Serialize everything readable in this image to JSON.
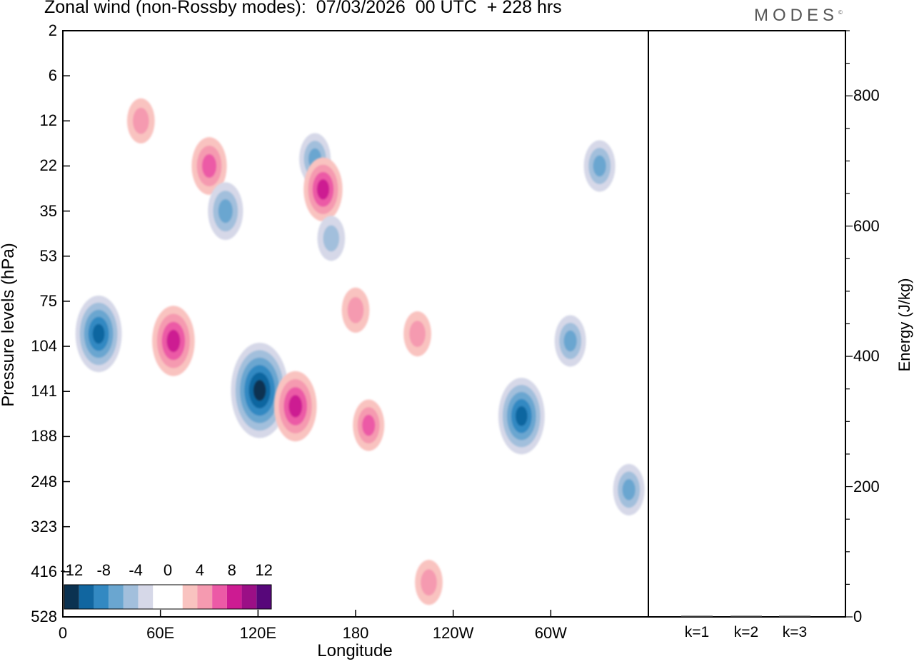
{
  "header": {
    "title": "Zonal wind (non-Rossby modes):  07/03/2026  00 UTC  + 228 hrs",
    "brand": "MODES",
    "brand_mark": "©"
  },
  "chart_data": [
    {
      "type": "heatmap",
      "title": "Zonal wind (non-Rossby modes):  07/03/2026  00 UTC  + 228 hrs",
      "xlabel": "Longitude",
      "ylabel": "Pressure levels (hPa)",
      "xticks": [
        "0",
        "60E",
        "120E",
        "180",
        "120W",
        "60W"
      ],
      "xtick_values": [
        0,
        60,
        120,
        180,
        240,
        300
      ],
      "xlim": [
        0,
        360
      ],
      "yticks": [
        "2",
        "6",
        "12",
        "22",
        "35",
        "53",
        "75",
        "104",
        "141",
        "188",
        "248",
        "323",
        "416",
        "528"
      ],
      "colorbar": {
        "labels": [
          "-12",
          "-8",
          "-4",
          "0",
          "4",
          "8",
          "12"
        ],
        "label_values": [
          -12,
          -8,
          -4,
          0,
          4,
          8,
          12
        ],
        "colors": [
          "#0b3251",
          "#1166a0",
          "#3389c2",
          "#6aa6d0",
          "#a2bfdc",
          "#d6d8e8",
          "#ffffff",
          "#ffffff",
          "#f9c3c0",
          "#f59ab0",
          "#ec5aa6",
          "#cd1b92",
          "#9b0f86",
          "#57077a"
        ]
      },
      "features": [
        {
          "sign": "positive",
          "lon": 48,
          "level": 12,
          "magnitude": 4
        },
        {
          "sign": "positive",
          "lon": 90,
          "level": 22,
          "magnitude": 6
        },
        {
          "sign": "negative",
          "lon": 100,
          "level": 35,
          "magnitude": 6
        },
        {
          "sign": "negative",
          "lon": 155,
          "level": 20,
          "magnitude": 5
        },
        {
          "sign": "positive",
          "lon": 160,
          "level": 28,
          "magnitude": 7
        },
        {
          "sign": "negative",
          "lon": 165,
          "level": 45,
          "magnitude": 4
        },
        {
          "sign": "positive",
          "lon": 180,
          "level": 80,
          "magnitude": 4
        },
        {
          "sign": "negative",
          "lon": 22,
          "level": 95,
          "magnitude": 9
        },
        {
          "sign": "positive",
          "lon": 68,
          "level": 100,
          "magnitude": 8
        },
        {
          "sign": "negative",
          "lon": 121,
          "level": 140,
          "magnitude": 12
        },
        {
          "sign": "positive",
          "lon": 143,
          "level": 155,
          "magnitude": 8
        },
        {
          "sign": "positive",
          "lon": 188,
          "level": 175,
          "magnitude": 5
        },
        {
          "sign": "positive",
          "lon": 218,
          "level": 95,
          "magnitude": 4
        },
        {
          "sign": "negative",
          "lon": 282,
          "level": 165,
          "magnitude": 9
        },
        {
          "sign": "negative",
          "lon": 312,
          "level": 100,
          "magnitude": 5
        },
        {
          "sign": "negative",
          "lon": 348,
          "level": 260,
          "magnitude": 5
        },
        {
          "sign": "positive",
          "lon": 225,
          "level": 440,
          "magnitude": 4
        },
        {
          "sign": "negative",
          "lon": 330,
          "level": 22,
          "magnitude": 5
        }
      ]
    },
    {
      "type": "bar",
      "ylabel": "Energy (J/kg)",
      "categories": [
        "k=1",
        "k=2",
        "k=3"
      ],
      "values": [
        1,
        1,
        1
      ],
      "ylim": [
        0,
        900
      ],
      "yticks": [
        "0",
        "200",
        "400",
        "600",
        "800"
      ],
      "ytick_values": [
        0,
        200,
        400,
        600,
        800
      ]
    }
  ]
}
